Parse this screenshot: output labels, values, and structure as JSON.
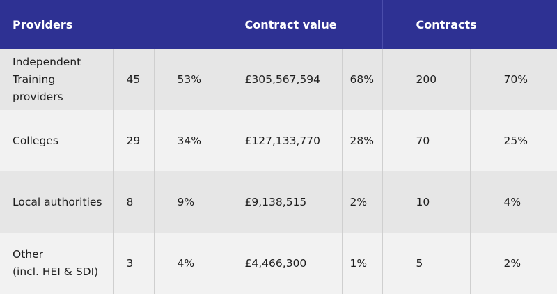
{
  "header": {
    "providers": "Providers",
    "contract_value": "Contract value",
    "contracts": "Contracts"
  },
  "rows": [
    {
      "name_lines": [
        "Independent",
        "Training",
        "providers"
      ],
      "count": "45",
      "count_pct": "53%",
      "value": "£305,567,594",
      "value_pct": "68%",
      "contracts": "200",
      "contracts_pct": "70%"
    },
    {
      "name_lines": [
        "Colleges"
      ],
      "count": "29",
      "count_pct": "34%",
      "value": "£127,133,770",
      "value_pct": "28%",
      "contracts": "70",
      "contracts_pct": "25%"
    },
    {
      "name_lines": [
        "Local authorities"
      ],
      "count": "8",
      "count_pct": "9%",
      "value": "£9,138,515",
      "value_pct": "2%",
      "contracts": "10",
      "contracts_pct": "4%"
    },
    {
      "name_lines": [
        "Other",
        "(incl. HEI & SDI)"
      ],
      "count": "3",
      "count_pct": "4%",
      "value": "£4,466,300",
      "value_pct": "1%",
      "contracts": "5",
      "contracts_pct": "2%"
    }
  ]
}
